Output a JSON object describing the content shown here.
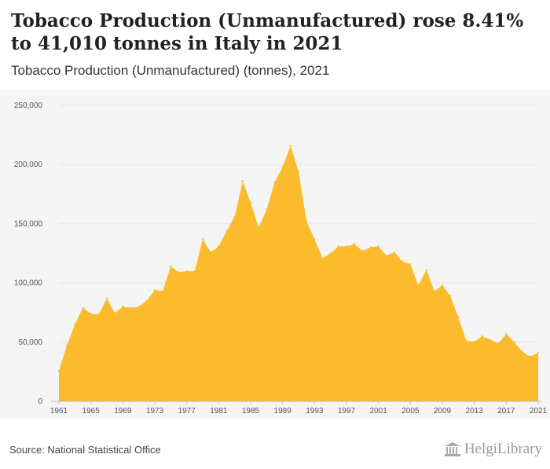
{
  "header": {
    "title": "Tobacco Production (Unmanufactured) rose 8.41% to 41,010 tonnes in Italy in 2021",
    "subtitle": "Tobacco Production (Unmanufactured) (tonnes), 2021"
  },
  "footer": {
    "source": "Source: National Statistical Office",
    "brand": "HelgiLibrary",
    "brand_icon": "library-building-icon"
  },
  "colors": {
    "area_fill": "#fbbb2c",
    "panel_bg": "#f5f5f5",
    "grid": "#e3e3e3"
  },
  "chart_data": {
    "type": "area",
    "title": "Tobacco Production (Unmanufactured) (tonnes), 2021",
    "xlabel": "",
    "ylabel": "",
    "ylim": [
      0,
      250000
    ],
    "xlim": [
      1961,
      2021
    ],
    "grid": true,
    "legend": "none",
    "y_ticks": [
      0,
      50000,
      100000,
      150000,
      200000,
      250000
    ],
    "y_tick_labels": [
      "0",
      "50,000",
      "100,000",
      "150,000",
      "200,000",
      "250,000"
    ],
    "x_tick_labels": [
      "1961",
      "1965",
      "1969",
      "1973",
      "1977",
      "1981",
      "1985",
      "1989",
      "1993",
      "1997",
      "2001",
      "2005",
      "2009",
      "2013",
      "2017",
      "2021"
    ],
    "x": [
      1961,
      1962,
      1963,
      1964,
      1965,
      1966,
      1967,
      1968,
      1969,
      1970,
      1971,
      1972,
      1973,
      1974,
      1975,
      1976,
      1977,
      1978,
      1979,
      1980,
      1981,
      1982,
      1983,
      1984,
      1985,
      1986,
      1987,
      1988,
      1989,
      1990,
      1991,
      1992,
      1993,
      1994,
      1995,
      1996,
      1997,
      1998,
      1999,
      2000,
      2001,
      2002,
      2003,
      2004,
      2005,
      2006,
      2007,
      2008,
      2009,
      2010,
      2011,
      2012,
      2013,
      2014,
      2015,
      2016,
      2017,
      2018,
      2019,
      2020,
      2021
    ],
    "values": [
      26000,
      47000,
      65000,
      79000,
      74000,
      73500,
      87000,
      74500,
      80000,
      79000,
      80000,
      85000,
      94000,
      93000,
      114000,
      109000,
      110000,
      110000,
      137000,
      126000,
      131000,
      144000,
      156000,
      186000,
      168000,
      147000,
      162000,
      185000,
      198000,
      216000,
      194000,
      152000,
      137000,
      121000,
      125000,
      131000,
      131000,
      133000,
      127000,
      130000,
      131000,
      123000,
      126000,
      118000,
      116000,
      98000,
      111000,
      93000,
      98000,
      89000,
      71000,
      51000,
      50500,
      55000,
      52000,
      49000,
      57000,
      50000,
      42000,
      37830,
      41010
    ],
    "series": [
      {
        "name": "Tobacco Production (Unmanufactured) (tonnes)"
      }
    ]
  }
}
